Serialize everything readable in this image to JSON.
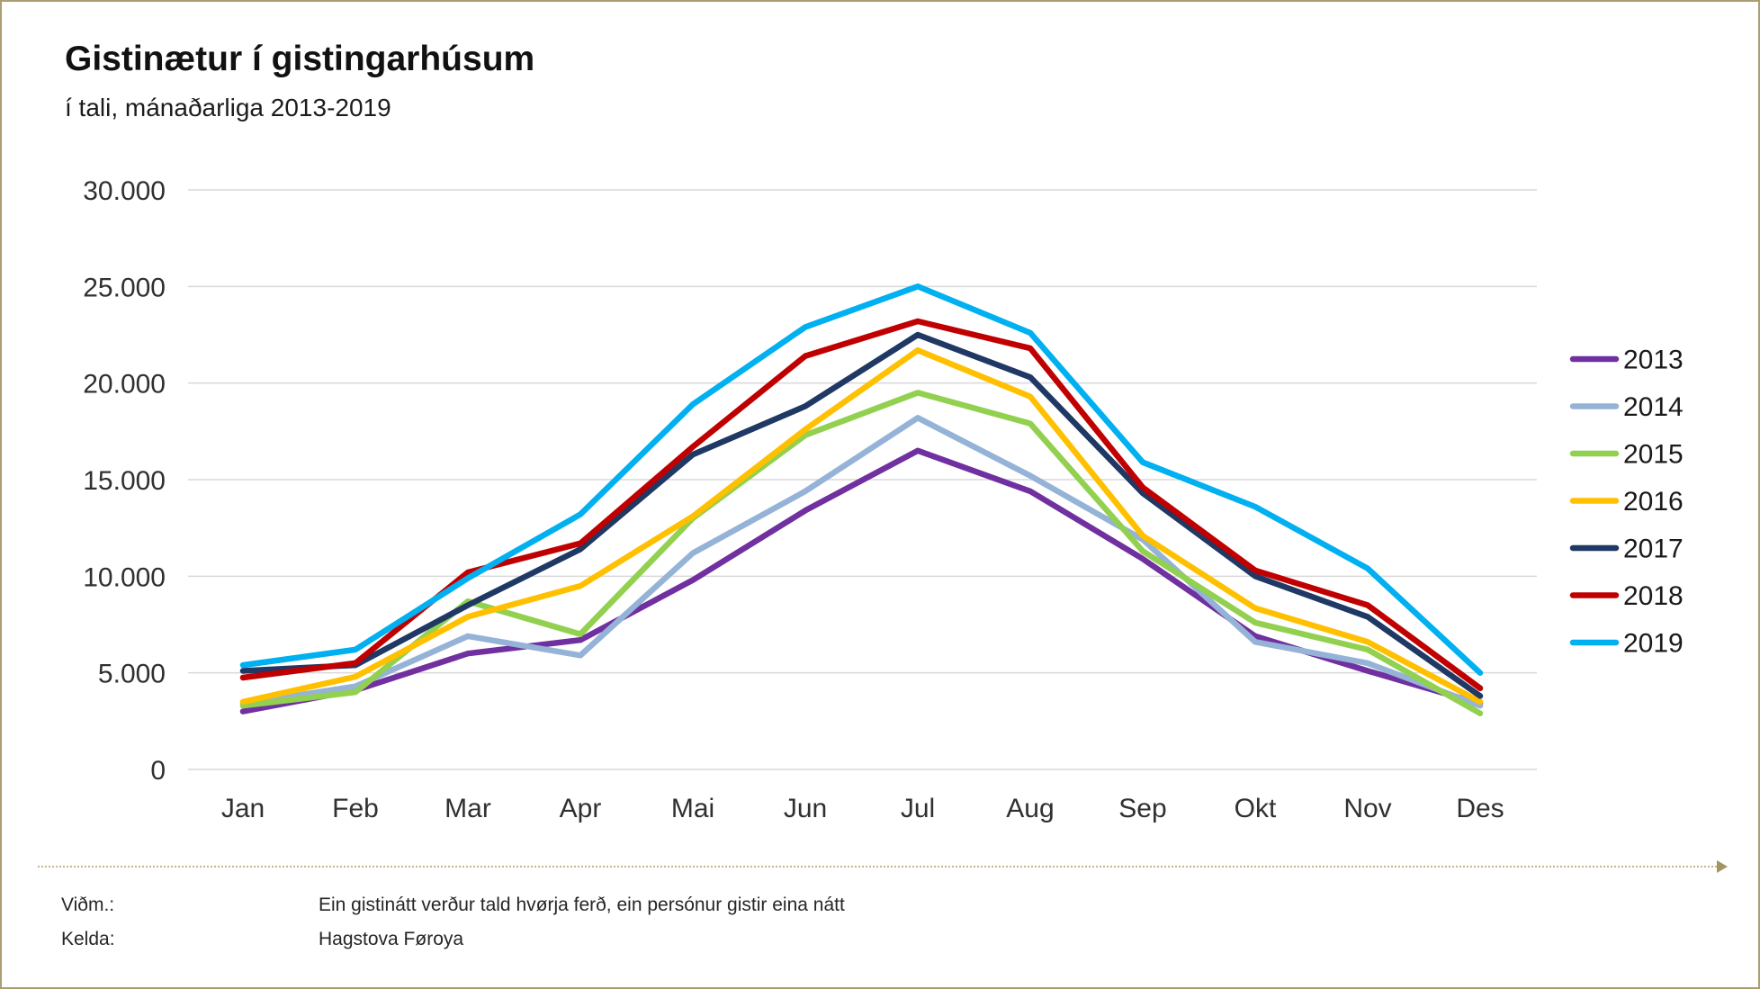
{
  "title": "Gistinætur í gistingarhúsum",
  "subtitle": "í tali, mánaðarliga 2013-2019",
  "footer": {
    "vidm_label": "Viðm.:",
    "vidm_text": "Ein gistinátt verður tald hvørja ferð, ein persónur gistir eina nátt",
    "kelda_label": "Kelda:",
    "kelda_text": "Hagstova Føroya"
  },
  "style_colors": {
    "frame_border": "#ab9e72",
    "gridline": "#d9d9d9",
    "divider": "#c3b58a",
    "divider_arrow": "#a4965e",
    "axis_text": "#303030"
  },
  "chart_data": {
    "type": "line",
    "title": "Gistinætur í gistingarhúsum",
    "subtitle": "í tali, mánaðarliga 2013-2019",
    "categories": [
      "Jan",
      "Feb",
      "Mar",
      "Apr",
      "Mai",
      "Jun",
      "Jul",
      "Aug",
      "Sep",
      "Okt",
      "Nov",
      "Des"
    ],
    "ylim": [
      0,
      30000
    ],
    "ytick_interval": 5000,
    "ytick_labels": [
      "0",
      "5.000",
      "10.000",
      "15.000",
      "20.000",
      "25.000",
      "30.000"
    ],
    "grid": true,
    "legend_position": "right",
    "series": [
      {
        "name": "2013",
        "color": "#7030a0",
        "values": [
          3000,
          4100,
          6000,
          6700,
          9800,
          13400,
          16500,
          14400,
          10900,
          6900,
          5100,
          3400
        ]
      },
      {
        "name": "2014",
        "color": "#95b3d7",
        "values": [
          3400,
          4300,
          6900,
          5900,
          11200,
          14400,
          18200,
          15200,
          11900,
          6600,
          5500,
          3300
        ]
      },
      {
        "name": "2015",
        "color": "#92d050",
        "values": [
          3300,
          4000,
          8700,
          7000,
          13000,
          17300,
          19500,
          17900,
          11300,
          7600,
          6200,
          2900
        ]
      },
      {
        "name": "2016",
        "color": "#ffc000",
        "values": [
          3500,
          4800,
          7900,
          9500,
          13100,
          17600,
          21700,
          19300,
          12100,
          8350,
          6600,
          3500
        ]
      },
      {
        "name": "2017",
        "color": "#1f3864",
        "values": [
          5100,
          5400,
          8500,
          11400,
          16300,
          18800,
          22500,
          20300,
          14300,
          10000,
          7900,
          3800
        ]
      },
      {
        "name": "2018",
        "color": "#c00000",
        "values": [
          4750,
          5500,
          10200,
          11700,
          16700,
          21400,
          23200,
          21800,
          14600,
          10300,
          8500,
          4200
        ]
      },
      {
        "name": "2019",
        "color": "#00b0f0",
        "values": [
          5400,
          6200,
          9900,
          13200,
          18900,
          22900,
          25000,
          22600,
          15900,
          13600,
          10400,
          5000
        ]
      }
    ]
  }
}
